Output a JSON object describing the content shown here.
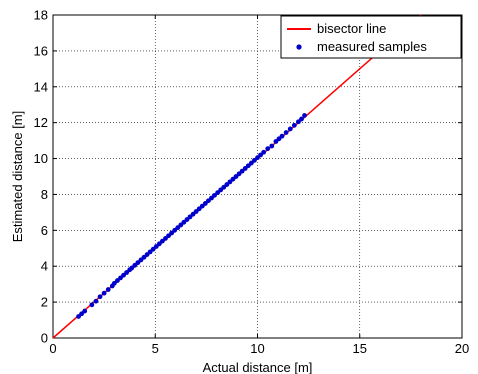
{
  "chart_data": {
    "type": "scatter",
    "title": "",
    "xlabel": "Actual distance [m]",
    "ylabel": "Estimated distance [m]",
    "xlim": [
      0,
      20
    ],
    "ylim": [
      0,
      18
    ],
    "xticks": [
      0,
      5,
      10,
      15,
      20
    ],
    "yticks": [
      0,
      2,
      4,
      6,
      8,
      10,
      12,
      14,
      16,
      18
    ],
    "grid": true,
    "legend_position": "top-right",
    "series": [
      {
        "name": "bisector line",
        "kind": "line",
        "color": "#ff0000",
        "x": [
          0,
          18
        ],
        "y": [
          0,
          18
        ]
      },
      {
        "name": "measured samples",
        "kind": "points",
        "color": "#0000cc",
        "x": [
          1.25,
          1.4,
          1.55,
          1.9,
          2.1,
          2.3,
          2.5,
          2.7,
          2.9,
          3.0,
          3.15,
          3.3,
          3.45,
          3.6,
          3.75,
          3.85,
          4.0,
          4.15,
          4.3,
          4.45,
          4.6,
          4.75,
          4.9,
          5.05,
          5.2,
          5.35,
          5.5,
          5.65,
          5.8,
          5.95,
          6.1,
          6.25,
          6.4,
          6.55,
          6.7,
          6.85,
          7.0,
          7.15,
          7.3,
          7.45,
          7.6,
          7.75,
          7.9,
          8.05,
          8.2,
          8.35,
          8.5,
          8.65,
          8.8,
          8.95,
          9.1,
          9.25,
          9.4,
          9.55,
          9.7,
          9.85,
          10.0,
          10.15,
          10.3,
          10.5,
          10.7,
          10.9,
          11.05,
          11.2,
          11.4,
          11.6,
          11.8,
          12.0,
          12.15,
          12.3
        ],
        "y": [
          1.2,
          1.35,
          1.5,
          1.85,
          2.05,
          2.3,
          2.5,
          2.7,
          2.9,
          3.05,
          3.2,
          3.35,
          3.5,
          3.65,
          3.8,
          3.9,
          4.05,
          4.2,
          4.35,
          4.5,
          4.65,
          4.8,
          4.95,
          5.1,
          5.25,
          5.4,
          5.55,
          5.7,
          5.85,
          6.0,
          6.15,
          6.3,
          6.45,
          6.6,
          6.75,
          6.9,
          7.05,
          7.2,
          7.35,
          7.5,
          7.65,
          7.8,
          7.95,
          8.1,
          8.25,
          8.4,
          8.55,
          8.7,
          8.85,
          9.0,
          9.15,
          9.3,
          9.45,
          9.6,
          9.75,
          9.9,
          10.05,
          10.2,
          10.35,
          10.55,
          10.7,
          10.95,
          11.1,
          11.25,
          11.45,
          11.65,
          11.85,
          12.05,
          12.2,
          12.4
        ]
      }
    ]
  }
}
